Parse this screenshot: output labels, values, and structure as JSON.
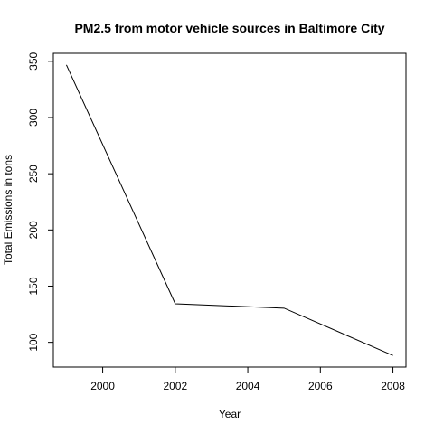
{
  "chart_data": {
    "type": "line",
    "title": "PM2.5 from motor vehicle sources in Baltimore City",
    "xlabel": "Year",
    "ylabel": "Total Emissions in tons",
    "x": [
      1999,
      2002,
      2005,
      2008
    ],
    "series": [
      {
        "values": [
          346.8,
          134.3,
          130.4,
          88.3
        ]
      }
    ],
    "xticks": [
      2000,
      2002,
      2004,
      2006,
      2008
    ],
    "yticks": [
      100,
      150,
      200,
      250,
      300,
      350
    ],
    "xlim": [
      1998.64,
      2008.36
    ],
    "ylim": [
      78.0,
      357.1
    ],
    "grid": false,
    "legend": "none"
  }
}
